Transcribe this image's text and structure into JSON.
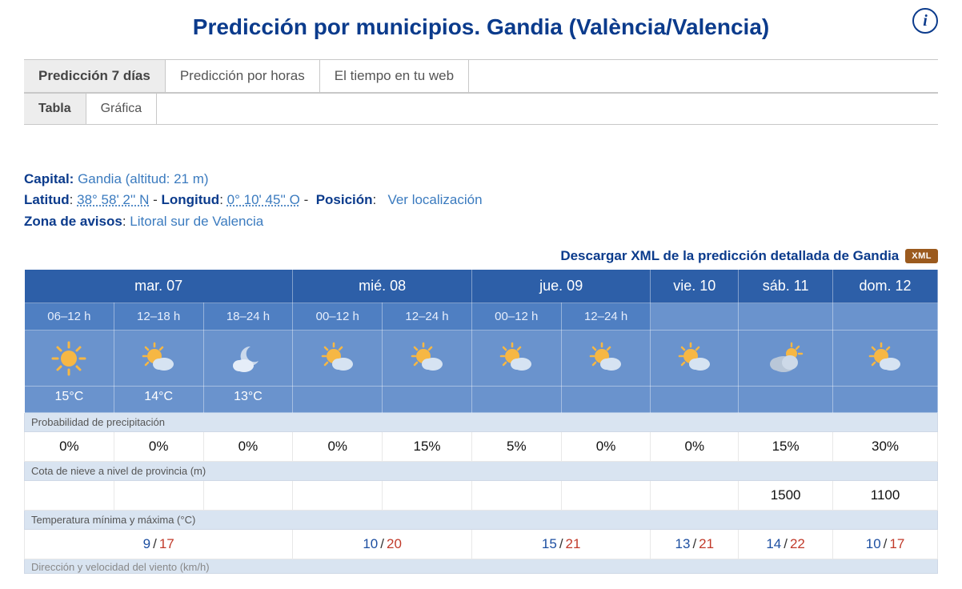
{
  "title": "Predicción por municipios. Gandia (València/Valencia)",
  "tabs_primary": [
    "Predicción 7 días",
    "Predicción por horas",
    "El tiempo en tu web"
  ],
  "tabs_primary_active": 0,
  "tabs_secondary": [
    "Tabla",
    "Gráfica"
  ],
  "tabs_secondary_active": 0,
  "meta": {
    "capital_label": "Capital:",
    "capital_value": "Gandia (altitud: 21 m)",
    "lat_label": "Latitud",
    "lat_value": "38° 58' 2'' N",
    "lon_label": "Longitud",
    "lon_value": "0° 10' 45'' O",
    "pos_label": "Posición",
    "pos_link": "Ver localización",
    "zona_label": "Zona de avisos",
    "zona_value": "Litoral sur de Valencia"
  },
  "download_text": "Descargar XML de la predicción detallada de Gandia",
  "xml_badge": "XML",
  "row_labels": {
    "precip": "Probabilidad de precipitación",
    "snow": "Cota de nieve a nivel de provincia (m)",
    "temp": "Temperatura mínima y máxima (°C)",
    "wind": "Dirección y velocidad del viento (km/h)"
  },
  "colors": {
    "brand": "#0b3b8c",
    "header_dark": "#2d5fa8",
    "header_mid": "#4f7fc2",
    "header_light": "#6a93cd",
    "label_bg": "#d9e4f1",
    "min": "#1d4fa1",
    "max": "#c13a2a",
    "xml_badge": "#9b5a1e"
  },
  "days": [
    {
      "label": "mar. 07",
      "segments": [
        {
          "hours": "06–12 h",
          "icon": "sun",
          "temp": "15°C"
        },
        {
          "hours": "12–18 h",
          "icon": "sun-cloud",
          "temp": "14°C"
        },
        {
          "hours": "18–24 h",
          "icon": "moon-cloud",
          "temp": "13°C"
        }
      ],
      "precip": [
        "0%",
        "0%",
        "0%"
      ],
      "snow": [
        "",
        "",
        ""
      ],
      "minmax": {
        "min": "9",
        "max": "17"
      }
    },
    {
      "label": "mié. 08",
      "segments": [
        {
          "hours": "00–12 h",
          "icon": "sun-cloud"
        },
        {
          "hours": "12–24 h",
          "icon": "sun-cloud"
        }
      ],
      "precip": [
        "0%",
        "15%"
      ],
      "snow": [
        "",
        ""
      ],
      "minmax": {
        "min": "10",
        "max": "20"
      }
    },
    {
      "label": "jue. 09",
      "segments": [
        {
          "hours": "00–12 h",
          "icon": "sun-cloud"
        },
        {
          "hours": "12–24 h",
          "icon": "sun-cloud"
        }
      ],
      "precip": [
        "5%",
        "0%"
      ],
      "snow": [
        "",
        ""
      ],
      "minmax": {
        "min": "15",
        "max": "21"
      }
    },
    {
      "label": "vie. 10",
      "segments": [
        {
          "icon": "sun-cloud"
        }
      ],
      "precip": [
        "0%"
      ],
      "snow": [
        ""
      ],
      "minmax": {
        "min": "13",
        "max": "21"
      }
    },
    {
      "label": "sáb. 11",
      "segments": [
        {
          "icon": "cloud-sun"
        }
      ],
      "precip": [
        "15%"
      ],
      "snow": [
        "1500"
      ],
      "minmax": {
        "min": "14",
        "max": "22"
      }
    },
    {
      "label": "dom. 12",
      "segments": [
        {
          "icon": "sun-cloud"
        }
      ],
      "precip": [
        "30%"
      ],
      "snow": [
        "1100"
      ],
      "minmax": {
        "min": "10",
        "max": "17"
      }
    }
  ]
}
